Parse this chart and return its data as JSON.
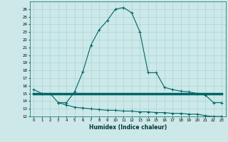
{
  "xlabel": "Humidex (Indice chaleur)",
  "ylabel": "",
  "bg_color": "#cce8e8",
  "grid_color": "#aad4d4",
  "line_color": "#006666",
  "xlim": [
    -0.5,
    23.5
  ],
  "ylim": [
    12,
    27
  ],
  "x": [
    0,
    1,
    2,
    3,
    4,
    5,
    6,
    7,
    8,
    9,
    10,
    11,
    12,
    13,
    14,
    15,
    16,
    17,
    18,
    19,
    20,
    21,
    22,
    23
  ],
  "y_upper": [
    15.5,
    15.0,
    15.0,
    13.8,
    13.8,
    15.2,
    17.8,
    21.3,
    23.3,
    24.5,
    26.0,
    26.2,
    25.5,
    23.0,
    17.7,
    17.7,
    15.8,
    15.5,
    15.3,
    15.2,
    15.0,
    14.8,
    13.8,
    13.8
  ],
  "y_mid": [
    15.0,
    15.0,
    15.0,
    15.0,
    15.0,
    15.0,
    15.0,
    15.0,
    15.0,
    15.0,
    15.0,
    15.0,
    15.0,
    15.0,
    15.0,
    15.0,
    15.0,
    15.0,
    15.0,
    15.0,
    15.0,
    15.0,
    15.0,
    15.0
  ],
  "y_lower": [
    null,
    null,
    null,
    13.8,
    13.5,
    13.2,
    13.1,
    13.0,
    12.9,
    12.8,
    12.8,
    12.7,
    12.7,
    12.6,
    12.6,
    12.5,
    12.5,
    12.4,
    12.4,
    12.3,
    12.3,
    12.1,
    12.0,
    12.0
  ],
  "yticks": [
    12,
    13,
    14,
    15,
    16,
    17,
    18,
    19,
    20,
    21,
    22,
    23,
    24,
    25,
    26
  ],
  "xticks": [
    0,
    1,
    2,
    3,
    4,
    5,
    6,
    7,
    8,
    9,
    10,
    11,
    12,
    13,
    14,
    15,
    16,
    17,
    18,
    19,
    20,
    21,
    22,
    23
  ]
}
